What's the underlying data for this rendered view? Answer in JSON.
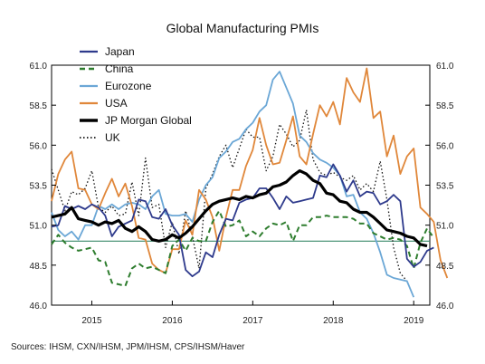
{
  "chart_data": {
    "type": "line",
    "title": "Global Manufacturing PMIs",
    "source": "Sources:  IHSM, CXN/IHSM, JPM/IHSM, CPS/IHSM/Haver",
    "ylim": [
      46.0,
      61.0
    ],
    "y_ticks": [
      "61.0",
      "58.5",
      "56.0",
      "53.5",
      "51.0",
      "48.5",
      "46.0"
    ],
    "x_ticks": [
      {
        "label": "2015",
        "x": 2015.0
      },
      {
        "label": "2016",
        "x": 2016.0
      },
      {
        "label": "2017",
        "x": 2017.0
      },
      {
        "label": "2018",
        "x": 2018.0
      },
      {
        "label": "2019",
        "x": 2019.0
      }
    ],
    "xlim": [
      2014.5,
      2019.2
    ],
    "reference_line": 50.0,
    "legend_position": "top-left",
    "grid": false,
    "series": [
      {
        "name": "Japan",
        "color": "#2e3a8c",
        "dash": "solid",
        "start": 2014.5,
        "values": [
          50.9,
          51.0,
          52.2,
          52.0,
          52.2,
          52.0,
          52.3,
          52.1,
          51.6,
          50.3,
          50.9,
          51.1,
          51.3,
          52.6,
          52.5,
          51.5,
          51.4,
          52.0,
          51.0,
          50.4,
          48.2,
          47.8,
          48.1,
          49.3,
          49.0,
          50.4,
          51.4,
          51.3,
          52.4,
          52.6,
          52.7,
          53.3,
          53.3,
          52.7,
          52.0,
          52.8,
          52.4,
          52.5,
          52.6,
          52.7,
          54.1,
          54.0,
          54.8,
          54.1,
          53.1,
          53.8,
          52.8,
          53.1,
          53.0,
          52.3,
          52.5,
          52.9,
          52.5,
          48.9,
          48.4,
          48.7,
          49.4,
          49.6
        ]
      },
      {
        "name": "China",
        "color": "#2e7d2e",
        "dash": "dashed",
        "start": 2014.5,
        "values": [
          49.8,
          50.4,
          49.9,
          49.6,
          49.4,
          49.5,
          49.6,
          48.8,
          48.7,
          47.4,
          47.3,
          47.2,
          48.3,
          48.6,
          48.3,
          48.4,
          48.2,
          48.0,
          49.7,
          50.1,
          49.4,
          50.2,
          50.0,
          50.0,
          51.2,
          51.9,
          50.9,
          51.0,
          51.3,
          50.3,
          50.6,
          50.3,
          50.8,
          51.1,
          51.0,
          51.2,
          50.0,
          51.0,
          51.0,
          51.5,
          51.5,
          51.6,
          51.5,
          51.5,
          51.5,
          51.4,
          51.1,
          51.1,
          50.5,
          50.3,
          50.1,
          50.2,
          50.1,
          49.7,
          48.3,
          49.9,
          50.8,
          50.2
        ]
      },
      {
        "name": "Eurozone",
        "color": "#6ba7d6",
        "dash": "solid",
        "start": 2014.5,
        "values": [
          51.8,
          50.7,
          50.3,
          50.6,
          50.1,
          51.0,
          51.0,
          52.2,
          52.0,
          52.3,
          52.0,
          52.3,
          52.4,
          52.3,
          52.0,
          52.8,
          53.2,
          51.7,
          51.6,
          51.6,
          51.7,
          51.2,
          52.6,
          53.5,
          54.0,
          55.2,
          55.6,
          56.2,
          56.4,
          57.0,
          57.4,
          58.1,
          58.5,
          60.1,
          60.6,
          59.6,
          58.6,
          56.6,
          56.2,
          55.5,
          55.1,
          54.9,
          54.6,
          54.1,
          52.8,
          52.9,
          51.8,
          51.4,
          50.5,
          49.3,
          47.9,
          47.7,
          47.6,
          47.5,
          46.5
        ]
      },
      {
        "name": "USA",
        "color": "#e0873a",
        "dash": "solid",
        "start": 2014.5,
        "values": [
          52.5,
          54.2,
          55.1,
          55.6,
          53.3,
          53.2,
          52.3,
          52.0,
          53.0,
          53.9,
          52.8,
          53.6,
          52.2,
          50.2,
          50.1,
          48.6,
          48.2,
          48.0,
          49.5,
          49.5,
          51.3,
          50.4,
          53.2,
          52.6,
          51.5,
          49.4,
          51.5,
          53.2,
          53.2,
          54.7,
          55.7,
          57.7,
          56.0,
          54.8,
          54.9,
          56.3,
          57.8,
          55.3,
          54.8,
          56.7,
          58.5,
          57.8,
          58.7,
          57.3,
          60.2,
          59.3,
          58.7,
          60.8,
          57.7,
          58.1,
          55.3,
          56.6,
          54.2,
          55.3,
          55.8,
          52.1,
          51.7,
          51.2,
          48.8,
          47.7
        ]
      },
      {
        "name": "JP Morgan Global",
        "color": "#000000",
        "dash": "thick",
        "start": 2014.5,
        "values": [
          51.5,
          51.6,
          51.7,
          52.1,
          51.4,
          51.3,
          51.2,
          51.0,
          51.2,
          51.1,
          51.3,
          50.8,
          50.6,
          50.9,
          50.6,
          50.1,
          50.0,
          50.1,
          50.4,
          50.2,
          50.5,
          50.9,
          51.4,
          51.9,
          52.3,
          52.5,
          52.6,
          52.7,
          52.6,
          52.8,
          52.7,
          52.9,
          53.0,
          53.4,
          53.5,
          53.7,
          54.1,
          54.4,
          54.2,
          53.8,
          53.6,
          53.0,
          52.9,
          52.5,
          52.4,
          52.0,
          51.8,
          51.8,
          51.5,
          51.1,
          50.7,
          50.6,
          50.5,
          50.3,
          50.2,
          49.8,
          49.7
        ]
      },
      {
        "name": "UK",
        "color": "#111111",
        "dash": "dotted",
        "start": 2014.5,
        "values": [
          54.5,
          53.2,
          51.9,
          53.1,
          52.9,
          53.3,
          54.4,
          52.1,
          51.8,
          52.2,
          51.6,
          51.7,
          53.7,
          51.6,
          55.2,
          52.1,
          52.3,
          49.6,
          51.2,
          49.2,
          51.9,
          50.3,
          48.3,
          53.3,
          54.2,
          55.3,
          56.0,
          54.6,
          55.8,
          57.0,
          56.5,
          56.5,
          54.4,
          55.3,
          57.3,
          56.7,
          55.9,
          56.3,
          58.2,
          55.1,
          54.3,
          54.1,
          54.3,
          54.0,
          53.8,
          54.1,
          53.2,
          53.6,
          53.1,
          55.0,
          52.6,
          49.6,
          48.0,
          47.5
        ]
      }
    ]
  }
}
